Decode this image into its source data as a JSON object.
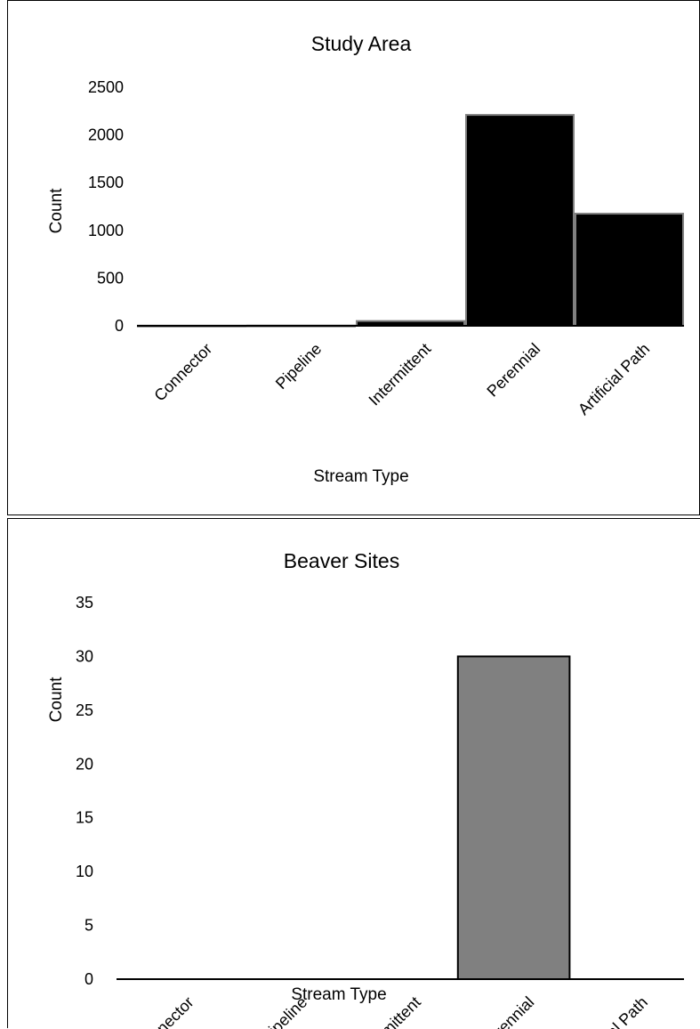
{
  "chart_data": [
    {
      "type": "bar",
      "title": "Study Area",
      "xlabel": "Stream Type",
      "ylabel": "Count",
      "categories": [
        "Connector",
        "Pipeline",
        "Intermittent",
        "Perennial",
        "Artificial Path"
      ],
      "values": [
        2,
        3,
        50,
        2210,
        1175
      ],
      "ylim": [
        0,
        2500
      ],
      "yticks": [
        "0",
        "500",
        "1000",
        "1500",
        "2000",
        "2500"
      ],
      "bar_color": "#000000",
      "bar_edge": "#808080",
      "grid": false,
      "legend": "none"
    },
    {
      "type": "bar",
      "title": "Beaver Sites",
      "xlabel": "Stream Type",
      "ylabel": "Count",
      "categories": [
        "Connector",
        "Pipeline",
        "Intermittent",
        "Perennial",
        "Artificial Path"
      ],
      "values": [
        0,
        0,
        0,
        30,
        0
      ],
      "ylim": [
        0,
        35
      ],
      "yticks": [
        "0",
        "5",
        "10",
        "15",
        "20",
        "25",
        "30",
        "35"
      ],
      "bar_color": "#808080",
      "bar_edge": "#000000",
      "grid": false,
      "legend": "none"
    }
  ]
}
